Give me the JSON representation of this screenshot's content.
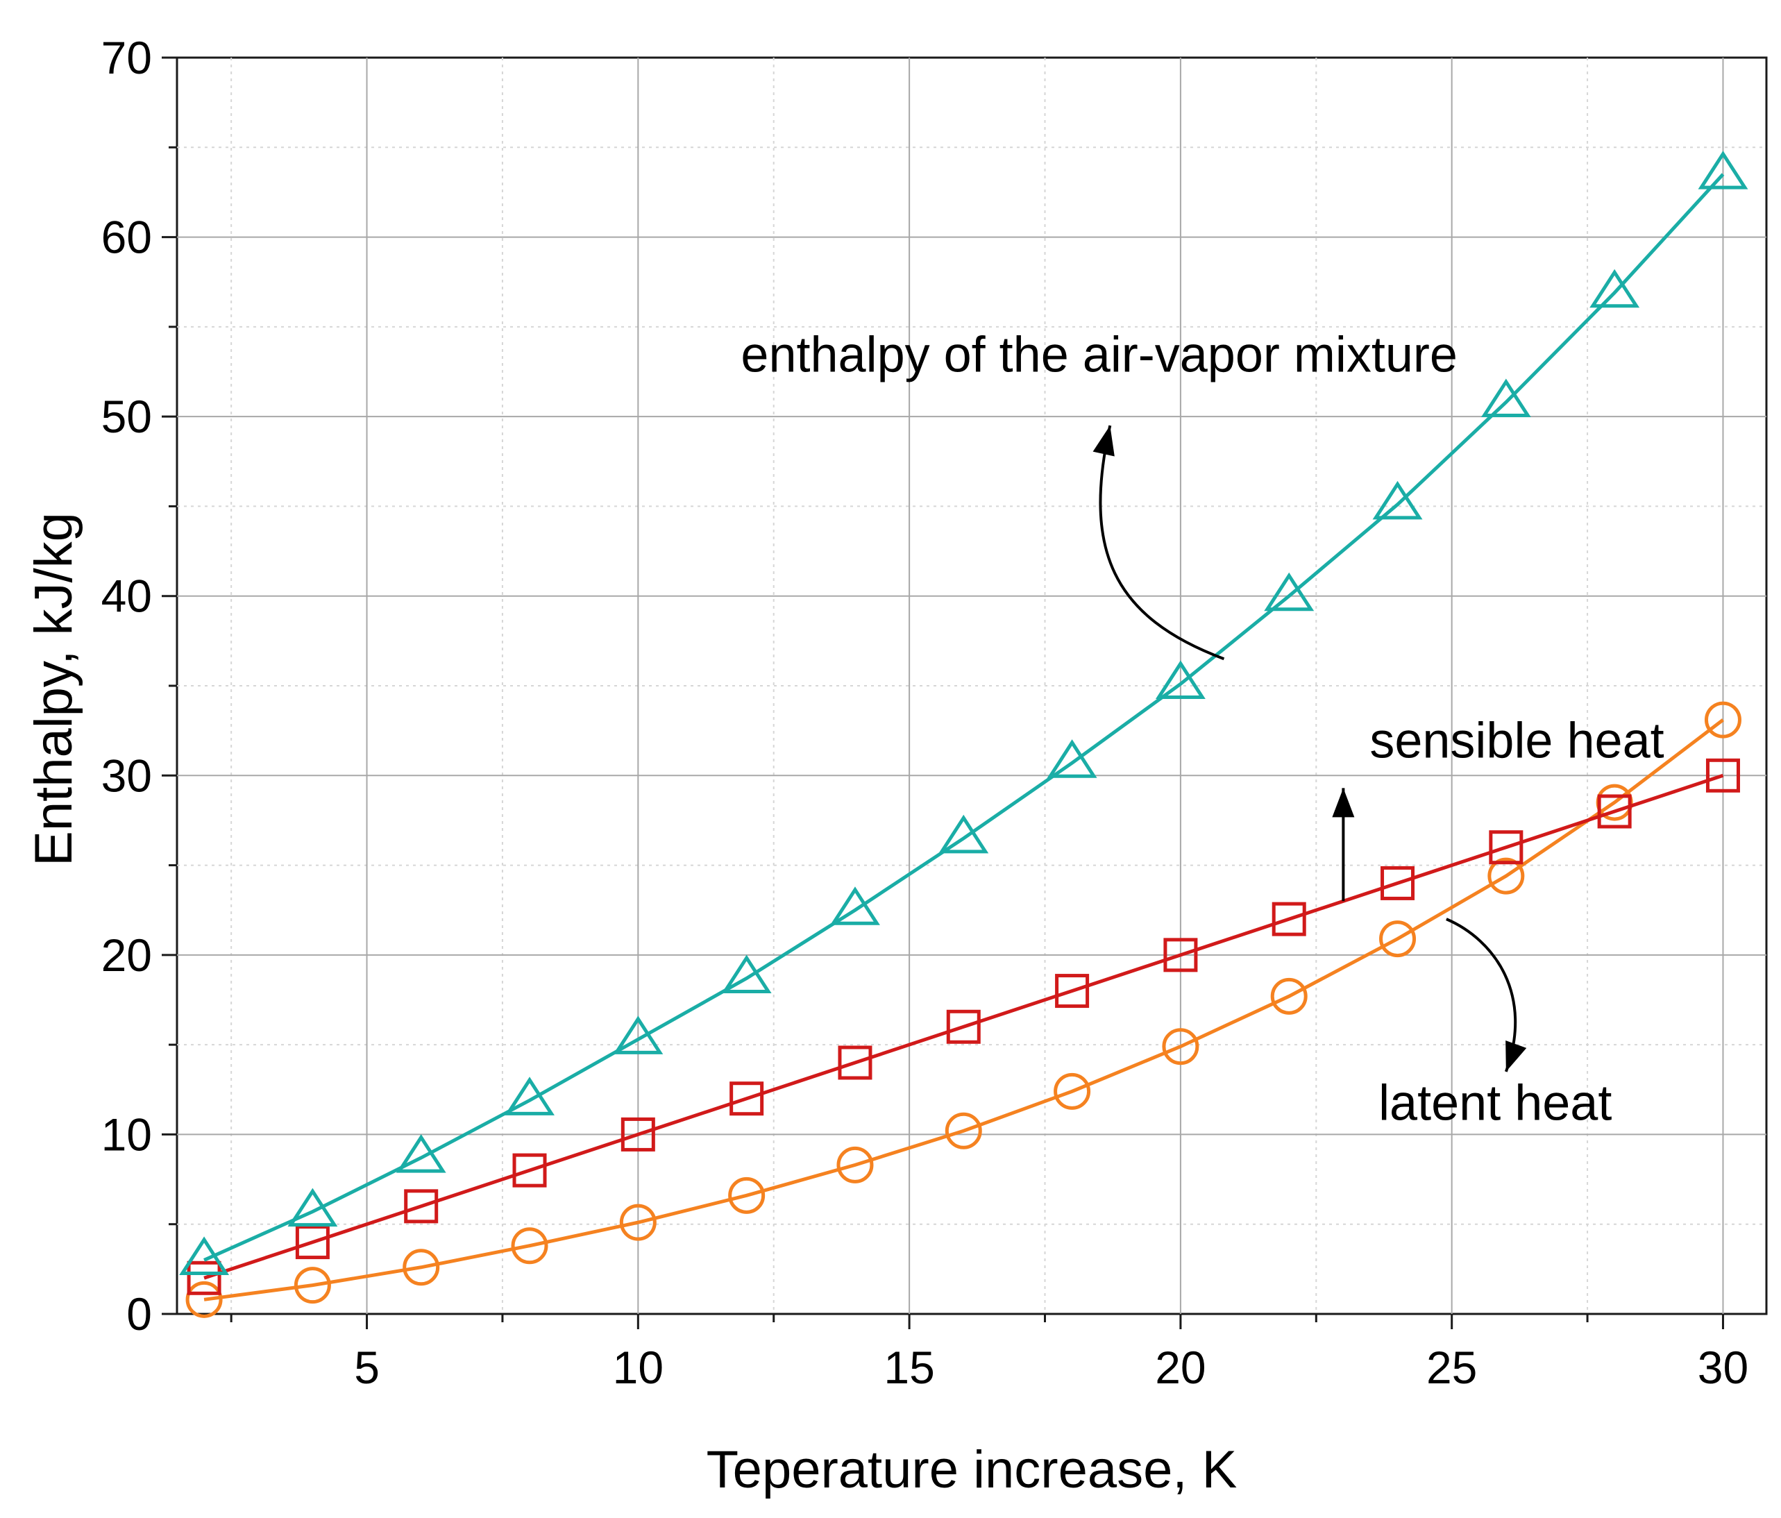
{
  "chart_data": {
    "type": "line",
    "title": "",
    "xlabel": "Teperature increase, K",
    "ylabel": "Enthalpy, kJ/kg",
    "xlim": [
      1.5,
      30.8
    ],
    "ylim": [
      0,
      70
    ],
    "xticks": [
      5,
      10,
      15,
      20,
      25,
      30
    ],
    "yticks": [
      0,
      10,
      20,
      30,
      40,
      50,
      60,
      70
    ],
    "x_minor_step": 2.5,
    "y_minor_step": 5,
    "grid": true,
    "x": [
      2,
      4,
      6,
      8,
      10,
      12,
      14,
      16,
      18,
      20,
      22,
      24,
      26,
      28,
      30
    ],
    "series": [
      {
        "name": "enthalpy of the air-vapor mixture",
        "marker": "triangle",
        "color": "#1aada6",
        "values": [
          3.0,
          5.7,
          8.7,
          11.9,
          15.3,
          18.7,
          22.5,
          26.5,
          30.7,
          35.1,
          40.0,
          45.1,
          50.8,
          56.9,
          63.5
        ]
      },
      {
        "name": "sensible heat",
        "marker": "square",
        "color": "#d11a1a",
        "values": [
          2.0,
          4.0,
          6.0,
          8.0,
          10.0,
          12.0,
          14.0,
          16.0,
          18.0,
          20.0,
          22.0,
          24.0,
          26.0,
          28.0,
          30.0
        ]
      },
      {
        "name": "latent heat",
        "marker": "circle",
        "color": "#f58220",
        "values": [
          0.8,
          1.6,
          2.6,
          3.8,
          5.1,
          6.6,
          8.3,
          10.2,
          12.4,
          14.9,
          17.7,
          20.9,
          24.4,
          28.5,
          33.1
        ]
      }
    ],
    "annotations": [
      {
        "text": "enthalpy of the air-vapor mixture",
        "series": "enthalpy of the air-vapor mixture",
        "text_x": 18.5,
        "text_y": 52.5,
        "arrow_from": [
          20.8,
          36.5
        ],
        "arrow_to": [
          18.7,
          49.5
        ],
        "curve": "arc-left"
      },
      {
        "text": "sensible heat",
        "series": "sensible heat",
        "text_x": 26.2,
        "text_y": 31.0,
        "arrow_from": [
          23.0,
          23.0
        ],
        "arrow_to": [
          23.0,
          29.3
        ],
        "curve": "straight"
      },
      {
        "text": "latent heat",
        "series": "latent heat",
        "text_x": 25.8,
        "text_y": 10.8,
        "arrow_from": [
          24.9,
          22.0
        ],
        "arrow_to": [
          26.0,
          13.5
        ],
        "curve": "arc-right"
      }
    ]
  }
}
